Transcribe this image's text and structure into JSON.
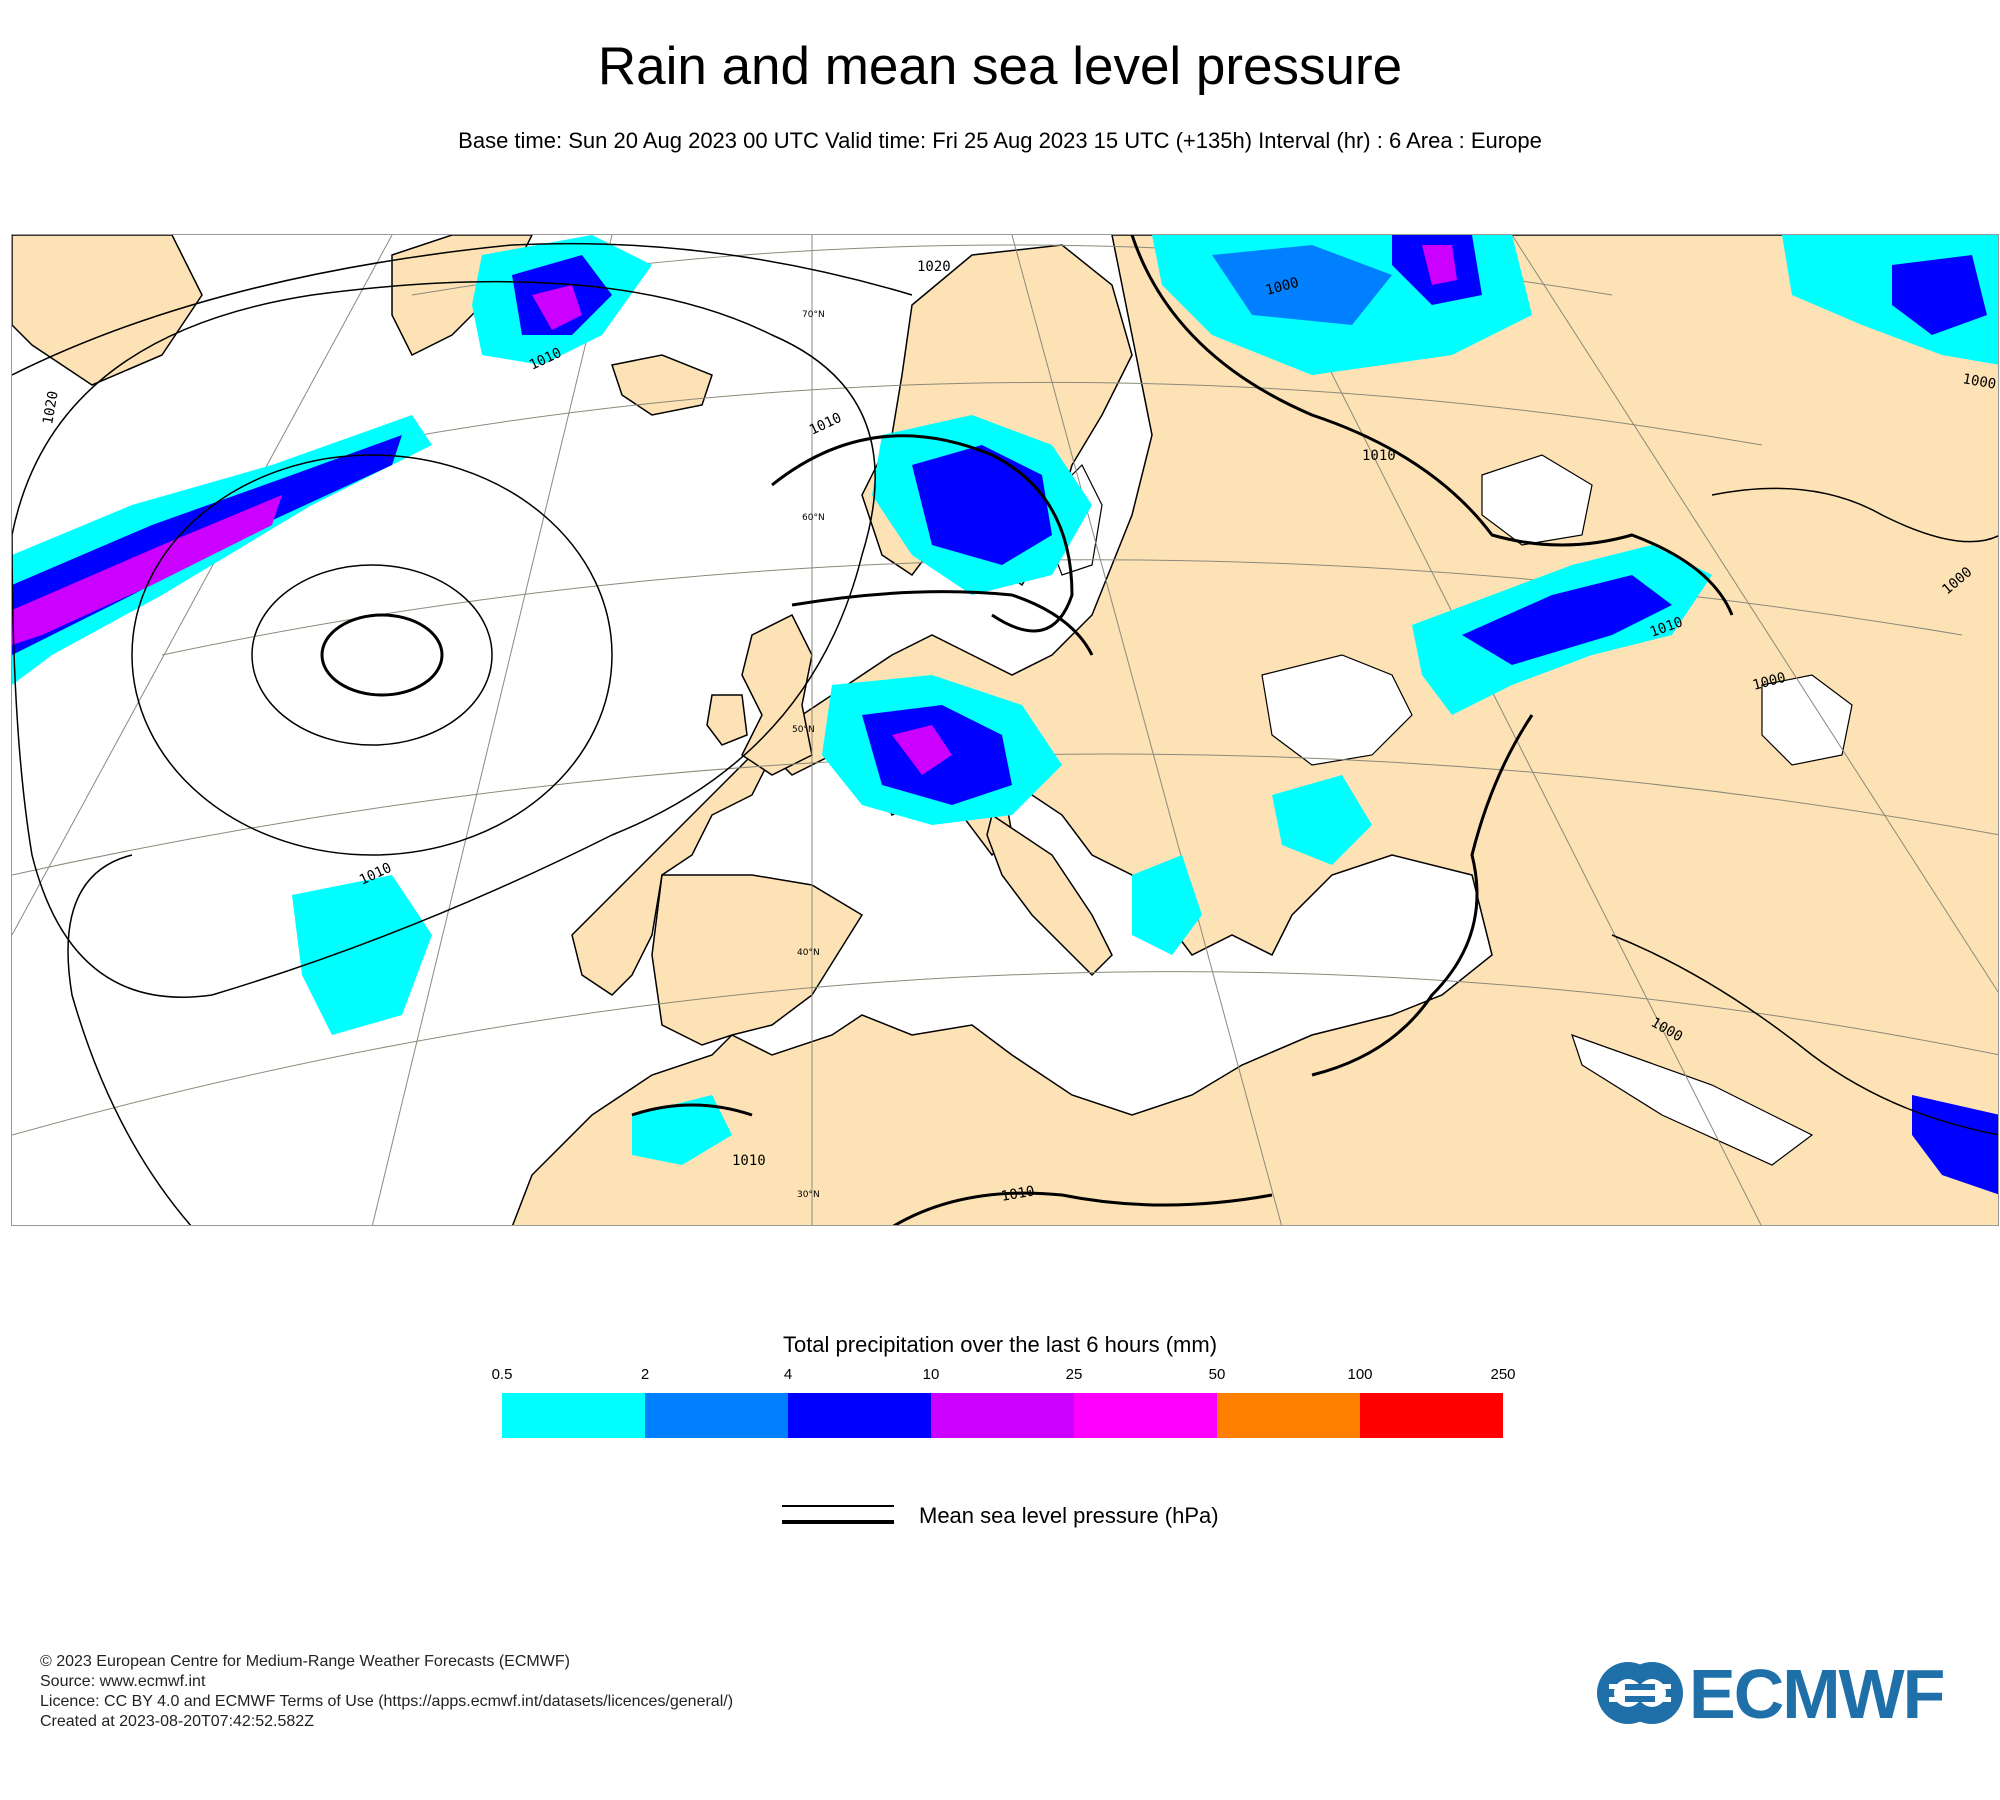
{
  "header": {
    "title": "Rain and mean sea level pressure",
    "subtitle": "Base time: Sun 20 Aug 2023 00 UTC Valid time: Fri 25 Aug 2023 15 UTC (+135h) Interval (hr) : 6 Area : Europe"
  },
  "map": {
    "land_color": "#fde2b5",
    "sea_color": "#ffffff",
    "latitude_labels": [
      "70°N",
      "60°N",
      "50°N",
      "40°N",
      "30°N"
    ],
    "isobar_labels": [
      "1020",
      "1020",
      "1010",
      "1010",
      "1010",
      "1010",
      "1010",
      "1010",
      "1010",
      "1000",
      "1000",
      "1000",
      "1000",
      "1000"
    ]
  },
  "legend": {
    "title": "Total precipitation over the last 6 hours (mm)",
    "ticks": [
      "0.5",
      "2",
      "4",
      "10",
      "25",
      "50",
      "100",
      "250"
    ],
    "colors": [
      "#00ffff",
      "#0080ff",
      "#0000ff",
      "#cc00ff",
      "#ff00ff",
      "#ff8000",
      "#ff0000"
    ],
    "msl_label": "Mean sea level pressure (hPa)"
  },
  "footer": {
    "copyright": "© 2023 European Centre for Medium-Range Weather Forecasts (ECMWF)",
    "source": "Source: www.ecmwf.int",
    "licence": "Licence: CC BY 4.0 and ECMWF Terms of Use (https://apps.ecmwf.int/datasets/licences/general/)",
    "created": "Created at 2023-08-20T07:42:52.582Z",
    "logo_text": "ECMWF"
  }
}
